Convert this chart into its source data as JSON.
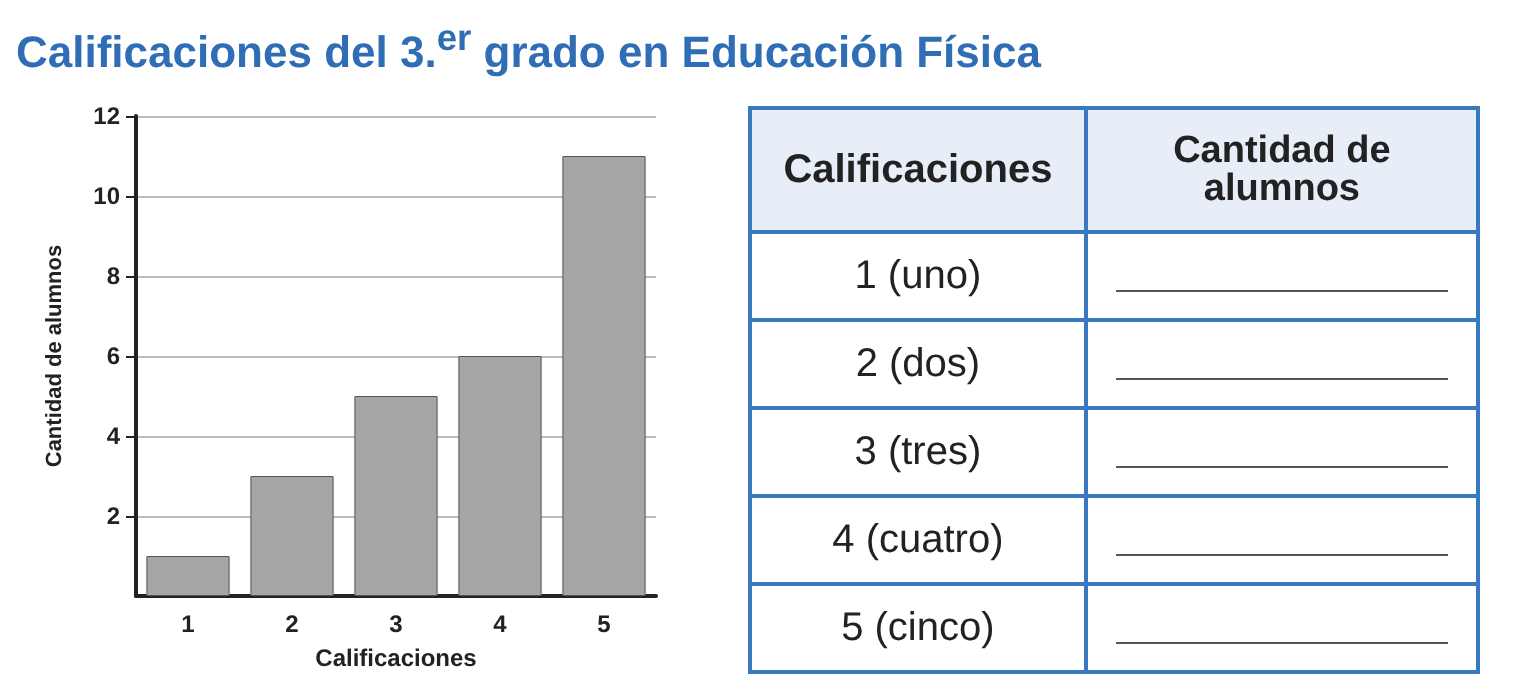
{
  "chart_data": [
    {
      "type": "bar",
      "title": "Calificaciones del 3.$^{er}$ grado en Educación Física",
      "xlabel": "Calificaciones",
      "ylabel": "Cantidad de alumnos",
      "categories": [
        "1",
        "2",
        "3",
        "4",
        "5"
      ],
      "values": [
        1,
        3,
        5,
        6,
        11
      ],
      "color": "#a6a6a6",
      "ylim": [
        0,
        12
      ],
      "yticks": [
        2,
        4,
        6,
        8,
        10,
        12
      ],
      "grid": "y"
    },
    {
      "type": "other",
      "annotations": [
        "Calificaciones",
        "Cantidad de alumnos",
        "1 (uno)",
        "2 (dos)",
        "3 (tres)",
        "4 (cuatro)",
        "5 (cinco)"
      ]
    }
  ]
}
